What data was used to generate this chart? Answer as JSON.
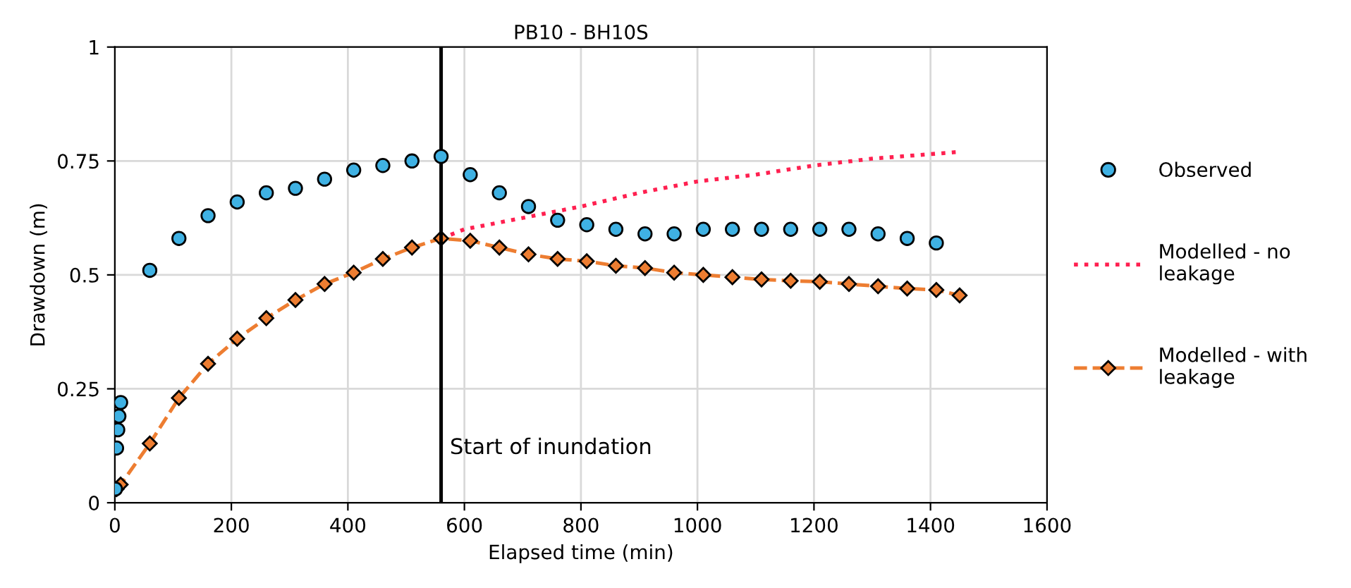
{
  "chart_data": {
    "type": "scatter",
    "title": "PB10 - BH10S",
    "xlabel": "Elapsed time (min)",
    "ylabel": "Drawdown (m)",
    "xlim": [
      0,
      1600
    ],
    "xticks": [
      0,
      200,
      400,
      600,
      800,
      1000,
      1200,
      1400,
      1600
    ],
    "ylim": [
      0,
      1
    ],
    "yticks": [
      0,
      0.25,
      0.5,
      0.75,
      1
    ],
    "grid": true,
    "legend": "right",
    "ref_lines": [
      {
        "axis": "x",
        "value": 560,
        "label": "Start of inundation",
        "color": "#000000"
      }
    ],
    "series": [
      {
        "name": "Observed",
        "color": "#3fb1e3",
        "marker": "circle",
        "line_style": "none",
        "x": [
          1,
          3,
          5,
          7,
          10,
          60,
          110,
          160,
          210,
          260,
          310,
          360,
          410,
          460,
          510,
          560,
          610,
          660,
          710,
          760,
          810,
          860,
          910,
          960,
          1010,
          1060,
          1110,
          1160,
          1210,
          1260,
          1310,
          1360,
          1410
        ],
        "values": [
          0.03,
          0.12,
          0.16,
          0.19,
          0.22,
          0.51,
          0.58,
          0.63,
          0.66,
          0.68,
          0.69,
          0.71,
          0.73,
          0.74,
          0.75,
          0.76,
          0.72,
          0.68,
          0.65,
          0.62,
          0.61,
          0.6,
          0.59,
          0.59,
          0.6,
          0.6,
          0.6,
          0.6,
          0.6,
          0.6,
          0.59,
          0.58,
          0.57
        ]
      },
      {
        "name": "Modelled - no leakage",
        "type": "line",
        "color": "#ff2050",
        "marker": "none",
        "line_style": "dotted",
        "x": [
          560,
          600,
          700,
          800,
          900,
          1000,
          1100,
          1200,
          1300,
          1400,
          1450
        ],
        "values": [
          0.58,
          0.6,
          0.625,
          0.65,
          0.68,
          0.705,
          0.72,
          0.74,
          0.755,
          0.765,
          0.77
        ]
      },
      {
        "name": "Modelled - with leakage",
        "type": "line",
        "color": "#ed7d31",
        "marker": "diamond",
        "line_style": "dashed",
        "x": [
          3,
          10,
          60,
          110,
          160,
          210,
          260,
          310,
          360,
          410,
          460,
          510,
          560,
          610,
          660,
          710,
          760,
          810,
          860,
          910,
          960,
          1010,
          1060,
          1110,
          1160,
          1210,
          1260,
          1310,
          1360,
          1410,
          1450
        ],
        "values": [
          0.03,
          0.04,
          0.13,
          0.23,
          0.305,
          0.36,
          0.405,
          0.445,
          0.48,
          0.505,
          0.535,
          0.56,
          0.58,
          0.575,
          0.56,
          0.545,
          0.535,
          0.53,
          0.52,
          0.515,
          0.505,
          0.5,
          0.495,
          0.49,
          0.487,
          0.485,
          0.48,
          0.475,
          0.47,
          0.467,
          0.455
        ]
      }
    ]
  }
}
